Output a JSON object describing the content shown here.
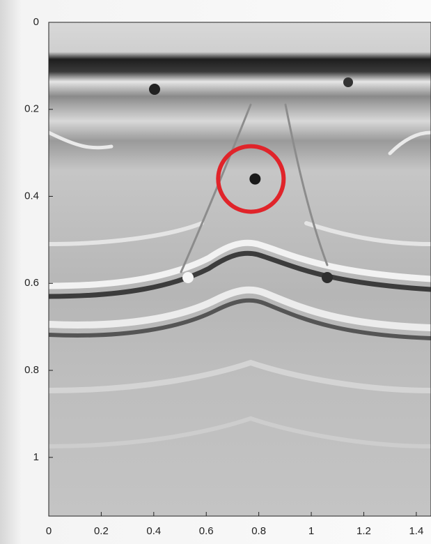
{
  "chart_data": {
    "type": "image",
    "xlim": [
      0,
      1.456
    ],
    "xticks": [
      0,
      0.2,
      0.4,
      0.6,
      0.8,
      1,
      1.2,
      1.4
    ],
    "ylim": [
      0,
      1.135
    ],
    "yticks": [
      0,
      0.2,
      0.4,
      0.6,
      0.8,
      1
    ],
    "y_reversed": true,
    "highlight": {
      "x": 0.77,
      "y": 0.36,
      "color": "#e0242a"
    }
  }
}
